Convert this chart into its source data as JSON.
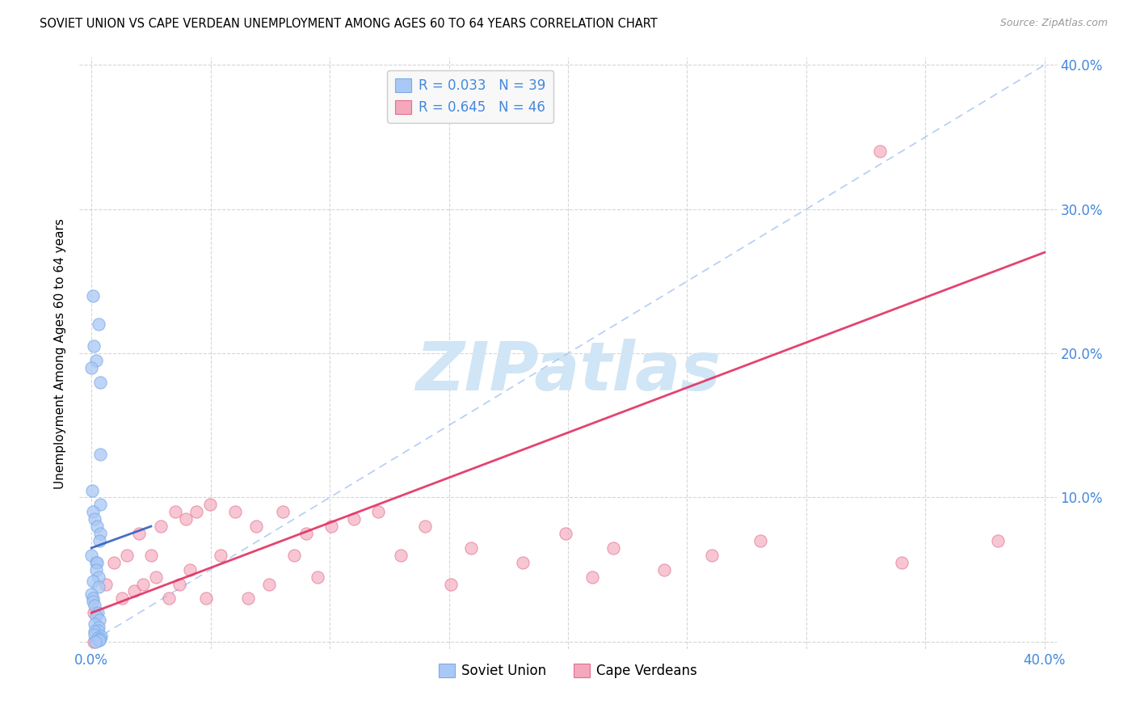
{
  "title": "SOVIET UNION VS CAPE VERDEAN UNEMPLOYMENT AMONG AGES 60 TO 64 YEARS CORRELATION CHART",
  "source": "Source: ZipAtlas.com",
  "ylabel": "Unemployment Among Ages 60 to 64 years",
  "xlim": [
    -0.005,
    0.405
  ],
  "ylim": [
    -0.005,
    0.405
  ],
  "xtick_vals": [
    0.0,
    0.05,
    0.1,
    0.15,
    0.2,
    0.25,
    0.3,
    0.35,
    0.4
  ],
  "ytick_vals": [
    0.0,
    0.1,
    0.2,
    0.3,
    0.4
  ],
  "soviet_color": "#aac8f5",
  "soviet_edge": "#7aabea",
  "cape_color": "#f5a8bc",
  "cape_edge": "#e07090",
  "trend_dashed_color": "#aac8f5",
  "trend_soviet_solid_color": "#3060c0",
  "trend_cape_color": "#e03060",
  "watermark_color": "#d0e5f5",
  "legend_box_color": "#f8f8f8",
  "legend_edge_color": "#cccccc",
  "tick_label_color": "#4488dd",
  "soviet_x": [
    0.001,
    0.001,
    0.001,
    0.001,
    0.001,
    0.001,
    0.001,
    0.001,
    0.001,
    0.001,
    0.001,
    0.001,
    0.001,
    0.001,
    0.001,
    0.001,
    0.001,
    0.001,
    0.001,
    0.001,
    0.001,
    0.001,
    0.001,
    0.001,
    0.001,
    0.001,
    0.001,
    0.001,
    0.001,
    0.001,
    0.001,
    0.001,
    0.001,
    0.001,
    0.001,
    0.001,
    0.001,
    0.001,
    0.001
  ],
  "soviet_y": [
    0.24,
    0.22,
    0.205,
    0.195,
    0.19,
    0.18,
    0.13,
    0.105,
    0.095,
    0.09,
    0.085,
    0.08,
    0.075,
    0.07,
    0.06,
    0.055,
    0.055,
    0.05,
    0.045,
    0.042,
    0.038,
    0.033,
    0.03,
    0.028,
    0.025,
    0.02,
    0.018,
    0.015,
    0.012,
    0.01,
    0.008,
    0.007,
    0.005,
    0.004,
    0.003,
    0.002,
    0.001,
    0.001,
    0.0
  ],
  "cape_x": [
    0.001,
    0.001,
    0.005,
    0.01,
    0.012,
    0.015,
    0.018,
    0.02,
    0.022,
    0.025,
    0.028,
    0.03,
    0.032,
    0.035,
    0.038,
    0.04,
    0.042,
    0.045,
    0.048,
    0.05,
    0.055,
    0.06,
    0.065,
    0.07,
    0.075,
    0.08,
    0.085,
    0.09,
    0.095,
    0.1,
    0.11,
    0.12,
    0.13,
    0.14,
    0.15,
    0.16,
    0.18,
    0.2,
    0.21,
    0.22,
    0.24,
    0.26,
    0.28,
    0.33,
    0.34,
    0.38
  ],
  "cape_y": [
    0.02,
    0.0,
    0.04,
    0.055,
    0.03,
    0.06,
    0.035,
    0.075,
    0.04,
    0.06,
    0.045,
    0.08,
    0.03,
    0.09,
    0.04,
    0.085,
    0.05,
    0.09,
    0.03,
    0.095,
    0.06,
    0.09,
    0.03,
    0.08,
    0.04,
    0.09,
    0.06,
    0.075,
    0.045,
    0.08,
    0.085,
    0.09,
    0.06,
    0.08,
    0.04,
    0.065,
    0.055,
    0.075,
    0.045,
    0.065,
    0.05,
    0.06,
    0.07,
    0.34,
    0.055,
    0.07
  ],
  "dashed_line_x": [
    0.0,
    0.4
  ],
  "dashed_line_y": [
    0.0,
    0.4
  ],
  "soviet_trend_x": [
    0.0,
    0.025
  ],
  "soviet_trend_y": [
    0.065,
    0.08
  ],
  "cape_trend_x": [
    0.0,
    0.4
  ],
  "cape_trend_y": [
    0.02,
    0.27
  ]
}
